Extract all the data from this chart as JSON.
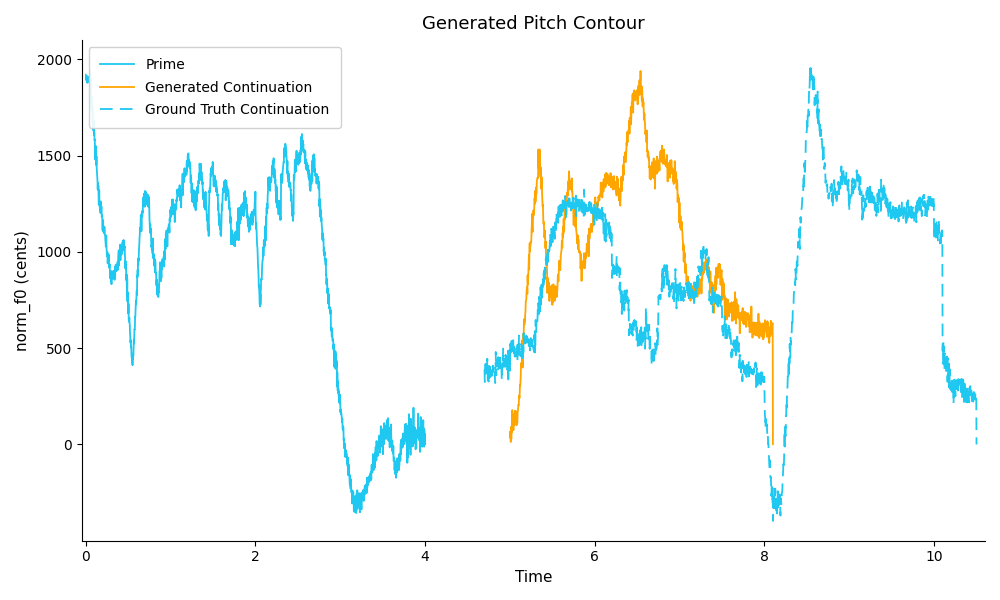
{
  "title": "Generated Pitch Contour",
  "xlabel": "Time",
  "ylabel": "norm_f0 (cents)",
  "xlim": [
    -0.05,
    10.6
  ],
  "ylim": [
    -500,
    2100
  ],
  "yticks": [
    0,
    500,
    1000,
    1500,
    2000
  ],
  "xticks": [
    0,
    2,
    4,
    6,
    8,
    10
  ],
  "prime_color": "#1EC8F0",
  "generated_color": "#FFA500",
  "ground_truth_color": "#1EC8F0",
  "prime_lw": 1.3,
  "continuation_lw": 1.3,
  "legend_labels": [
    "Prime",
    "Generated Continuation",
    "Ground Truth Continuation"
  ]
}
